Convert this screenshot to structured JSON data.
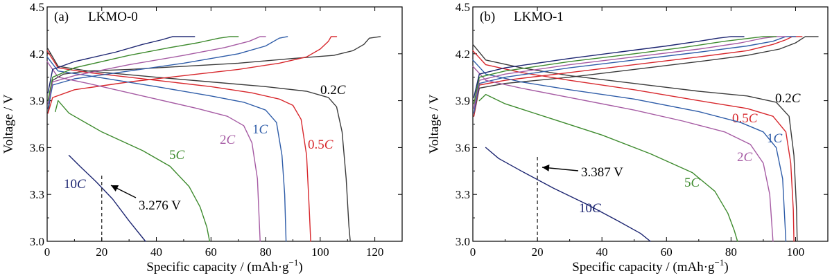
{
  "chart_data": [
    {
      "type": "line",
      "panel_label": "(a)",
      "title": "LKMO-0",
      "xlabel": "Specific capacity / (mAh·g",
      "xlabel_sup": "−1",
      "xlabel_end": ")",
      "ylabel": "Voltage / V",
      "xlim": [
        0,
        130
      ],
      "ylim": [
        3.0,
        4.5
      ],
      "x_ticks": [
        "0",
        "20",
        "40",
        "60",
        "80",
        "100",
        "120"
      ],
      "y_ticks": [
        "3.0",
        "3.3",
        "3.6",
        "3.9",
        "4.2",
        "4.5"
      ],
      "annotation": {
        "text": "3.276 V",
        "x": 20,
        "y": 3.276
      },
      "series": [
        {
          "name": "0.2C",
          "rate": "0.2",
          "color": "#3a3a3a",
          "charge": [
            [
              0.3,
              3.82
            ],
            [
              2,
              4.03
            ],
            [
              6,
              4.07
            ],
            [
              15,
              4.09
            ],
            [
              30,
              4.1
            ],
            [
              50,
              4.12
            ],
            [
              70,
              4.14
            ],
            [
              90,
              4.17
            ],
            [
              105,
              4.19
            ],
            [
              112,
              4.22
            ],
            [
              116,
              4.26
            ],
            [
              118,
              4.3
            ],
            [
              122,
              4.31
            ]
          ],
          "discharge": [
            [
              0,
              4.24
            ],
            [
              4,
              4.12
            ],
            [
              15,
              4.09
            ],
            [
              40,
              4.05
            ],
            [
              60,
              4.02
            ],
            [
              80,
              3.99
            ],
            [
              95,
              3.96
            ],
            [
              103,
              3.92
            ],
            [
              106,
              3.86
            ],
            [
              108,
              3.7
            ],
            [
              109.5,
              3.4
            ],
            [
              110.5,
              3.1
            ],
            [
              111,
              3.0
            ]
          ]
        },
        {
          "name": "0.5C",
          "rate": "0.5",
          "color": "#d7262b",
          "charge": [
            [
              0.3,
              3.82
            ],
            [
              2,
              3.92
            ],
            [
              10,
              3.97
            ],
            [
              30,
              4.02
            ],
            [
              50,
              4.06
            ],
            [
              70,
              4.1
            ],
            [
              85,
              4.14
            ],
            [
              95,
              4.18
            ],
            [
              100,
              4.23
            ],
            [
              103,
              4.28
            ],
            [
              104,
              4.31
            ],
            [
              106,
              4.31
            ]
          ],
          "discharge": [
            [
              0,
              4.22
            ],
            [
              4,
              4.11
            ],
            [
              15,
              4.08
            ],
            [
              40,
              4.03
            ],
            [
              60,
              3.99
            ],
            [
              75,
              3.95
            ],
            [
              85,
              3.91
            ],
            [
              90,
              3.87
            ],
            [
              93,
              3.78
            ],
            [
              95,
              3.55
            ],
            [
              96,
              3.2
            ],
            [
              96.5,
              3.0
            ]
          ]
        },
        {
          "name": "1C",
          "rate": "1",
          "color": "#2e5ca8",
          "charge": [
            [
              0.3,
              3.85
            ],
            [
              2,
              4.0
            ],
            [
              10,
              4.04
            ],
            [
              30,
              4.09
            ],
            [
              50,
              4.14
            ],
            [
              70,
              4.2
            ],
            [
              80,
              4.25
            ],
            [
              85,
              4.3
            ],
            [
              88,
              4.31
            ]
          ],
          "discharge": [
            [
              0,
              4.18
            ],
            [
              4,
              4.09
            ],
            [
              15,
              4.06
            ],
            [
              40,
              3.99
            ],
            [
              60,
              3.93
            ],
            [
              72,
              3.89
            ],
            [
              80,
              3.84
            ],
            [
              84,
              3.76
            ],
            [
              86,
              3.55
            ],
            [
              87,
              3.3
            ],
            [
              87.5,
              3.0
            ]
          ]
        },
        {
          "name": "2C",
          "rate": "2",
          "color": "#a55aa3",
          "charge": [
            [
              0.3,
              3.88
            ],
            [
              2,
              4.02
            ],
            [
              10,
              4.06
            ],
            [
              30,
              4.13
            ],
            [
              50,
              4.19
            ],
            [
              65,
              4.24
            ],
            [
              74,
              4.28
            ],
            [
              78,
              4.31
            ],
            [
              80,
              4.31
            ]
          ],
          "discharge": [
            [
              0,
              4.15
            ],
            [
              4,
              4.05
            ],
            [
              15,
              4.01
            ],
            [
              35,
              3.93
            ],
            [
              55,
              3.85
            ],
            [
              66,
              3.8
            ],
            [
              72,
              3.74
            ],
            [
              75,
              3.63
            ],
            [
              77,
              3.4
            ],
            [
              78,
              3.0
            ]
          ]
        },
        {
          "name": "5C",
          "rate": "5",
          "color": "#3d8a2d",
          "charge": [
            [
              0.3,
              3.9
            ],
            [
              2,
              4.05
            ],
            [
              10,
              4.11
            ],
            [
              30,
              4.19
            ],
            [
              45,
              4.24
            ],
            [
              55,
              4.27
            ],
            [
              63,
              4.3
            ],
            [
              67,
              4.31
            ],
            [
              70,
              4.31
            ]
          ],
          "discharge": [
            [
              3,
              3.83
            ],
            [
              4,
              3.9
            ],
            [
              8,
              3.82
            ],
            [
              20,
              3.7
            ],
            [
              35,
              3.58
            ],
            [
              45,
              3.48
            ],
            [
              52,
              3.35
            ],
            [
              56,
              3.22
            ],
            [
              58.5,
              3.09
            ],
            [
              59.5,
              3.0
            ]
          ]
        },
        {
          "name": "10C",
          "rate": "10",
          "color": "#1b2470",
          "charge": [
            [
              0.3,
              3.95
            ],
            [
              2,
              4.1
            ],
            [
              10,
              4.15
            ],
            [
              25,
              4.21
            ],
            [
              35,
              4.26
            ],
            [
              42,
              4.29
            ],
            [
              46,
              4.31
            ],
            [
              54,
              4.31
            ]
          ],
          "discharge": [
            [
              8,
              3.55
            ],
            [
              12,
              3.48
            ],
            [
              18,
              3.38
            ],
            [
              24,
              3.27
            ],
            [
              30,
              3.13
            ],
            [
              36,
              3.0
            ]
          ]
        }
      ]
    },
    {
      "type": "line",
      "panel_label": "(b)",
      "title": "LKMO-1",
      "xlabel": "Specific capacity / (mAh·g",
      "xlabel_sup": "−1",
      "xlabel_end": ")",
      "ylabel": "Voltage / V",
      "xlim": [
        0,
        110
      ],
      "ylim": [
        3.0,
        4.5
      ],
      "x_ticks": [
        "0",
        "20",
        "40",
        "60",
        "80",
        "100"
      ],
      "y_ticks": [
        "3.0",
        "3.3",
        "3.6",
        "3.9",
        "4.2",
        "4.5"
      ],
      "annotation": {
        "text": "3.387 V",
        "x": 20,
        "y": 3.387
      },
      "series": [
        {
          "name": "0.2C",
          "rate": "0.2",
          "color": "#3a3a3a",
          "charge": [
            [
              0.3,
              3.8
            ],
            [
              2,
              3.98
            ],
            [
              10,
              4.01
            ],
            [
              30,
              4.05
            ],
            [
              50,
              4.1
            ],
            [
              70,
              4.15
            ],
            [
              85,
              4.19
            ],
            [
              95,
              4.23
            ],
            [
              100,
              4.27
            ],
            [
              103,
              4.31
            ],
            [
              107,
              4.31
            ]
          ],
          "discharge": [
            [
              0,
              4.26
            ],
            [
              4,
              4.16
            ],
            [
              15,
              4.11
            ],
            [
              30,
              4.06
            ],
            [
              50,
              4.01
            ],
            [
              70,
              3.96
            ],
            [
              85,
              3.93
            ],
            [
              94,
              3.89
            ],
            [
              98,
              3.8
            ],
            [
              99.5,
              3.55
            ],
            [
              100.3,
              3.2
            ],
            [
              100.5,
              3.0
            ]
          ]
        },
        {
          "name": "0.5C",
          "rate": "0.5",
          "color": "#d7262b",
          "charge": [
            [
              0.3,
              3.8
            ],
            [
              2,
              4.0
            ],
            [
              10,
              4.03
            ],
            [
              30,
              4.08
            ],
            [
              50,
              4.13
            ],
            [
              70,
              4.18
            ],
            [
              85,
              4.22
            ],
            [
              93,
              4.26
            ],
            [
              97,
              4.29
            ],
            [
              99,
              4.31
            ],
            [
              102,
              4.31
            ]
          ],
          "discharge": [
            [
              0,
              4.22
            ],
            [
              4,
              4.13
            ],
            [
              15,
              4.08
            ],
            [
              30,
              4.03
            ],
            [
              50,
              3.97
            ],
            [
              70,
              3.9
            ],
            [
              85,
              3.85
            ],
            [
              93,
              3.8
            ],
            [
              97,
              3.7
            ],
            [
              98.5,
              3.5
            ],
            [
              99.3,
              3.2
            ],
            [
              99.5,
              3.0
            ]
          ]
        },
        {
          "name": "1C",
          "rate": "1",
          "color": "#2e5ca8",
          "charge": [
            [
              0.3,
              3.82
            ],
            [
              2,
              4.01
            ],
            [
              10,
              4.05
            ],
            [
              30,
              4.11
            ],
            [
              50,
              4.16
            ],
            [
              70,
              4.21
            ],
            [
              85,
              4.25
            ],
            [
              93,
              4.28
            ],
            [
              97,
              4.31
            ],
            [
              100,
              4.31
            ]
          ],
          "discharge": [
            [
              0,
              4.16
            ],
            [
              4,
              4.07
            ],
            [
              15,
              4.02
            ],
            [
              30,
              3.97
            ],
            [
              50,
              3.91
            ],
            [
              70,
              3.83
            ],
            [
              83,
              3.76
            ],
            [
              90,
              3.7
            ],
            [
              94,
              3.6
            ],
            [
              96,
              3.4
            ],
            [
              97,
              3.0
            ]
          ]
        },
        {
          "name": "2C",
          "rate": "2",
          "color": "#a55aa3",
          "charge": [
            [
              0.3,
              3.85
            ],
            [
              2,
              4.03
            ],
            [
              10,
              4.07
            ],
            [
              30,
              4.13
            ],
            [
              50,
              4.18
            ],
            [
              70,
              4.23
            ],
            [
              83,
              4.27
            ],
            [
              90,
              4.3
            ],
            [
              94,
              4.31
            ],
            [
              97,
              4.31
            ]
          ],
          "discharge": [
            [
              0,
              4.12
            ],
            [
              4,
              4.03
            ],
            [
              15,
              3.98
            ],
            [
              30,
              3.92
            ],
            [
              50,
              3.84
            ],
            [
              65,
              3.77
            ],
            [
              78,
              3.7
            ],
            [
              86,
              3.62
            ],
            [
              90,
              3.5
            ],
            [
              92,
              3.3
            ],
            [
              93,
              3.0
            ]
          ]
        },
        {
          "name": "5C",
          "rate": "5",
          "color": "#3d8a2d",
          "charge": [
            [
              0.3,
              3.88
            ],
            [
              2,
              4.05
            ],
            [
              10,
              4.09
            ],
            [
              30,
              4.15
            ],
            [
              50,
              4.2
            ],
            [
              65,
              4.24
            ],
            [
              78,
              4.28
            ],
            [
              86,
              4.3
            ],
            [
              90,
              4.31
            ],
            [
              94,
              4.31
            ]
          ],
          "discharge": [
            [
              2,
              3.9
            ],
            [
              4,
              3.94
            ],
            [
              10,
              3.88
            ],
            [
              25,
              3.78
            ],
            [
              40,
              3.68
            ],
            [
              55,
              3.56
            ],
            [
              68,
              3.44
            ],
            [
              75,
              3.32
            ],
            [
              79,
              3.18
            ],
            [
              81,
              3.07
            ],
            [
              82,
              3.0
            ]
          ]
        },
        {
          "name": "10C",
          "rate": "10",
          "color": "#1b2470",
          "charge": [
            [
              0.3,
              3.92
            ],
            [
              2,
              4.07
            ],
            [
              10,
              4.11
            ],
            [
              30,
              4.17
            ],
            [
              45,
              4.21
            ],
            [
              60,
              4.25
            ],
            [
              70,
              4.28
            ],
            [
              76,
              4.3
            ],
            [
              80,
              4.31
            ],
            [
              84,
              4.31
            ]
          ],
          "discharge": [
            [
              4,
              3.6
            ],
            [
              8,
              3.53
            ],
            [
              15,
              3.45
            ],
            [
              25,
              3.34
            ],
            [
              35,
              3.24
            ],
            [
              45,
              3.13
            ],
            [
              52,
              3.05
            ],
            [
              55,
              3.0
            ]
          ]
        }
      ]
    }
  ]
}
